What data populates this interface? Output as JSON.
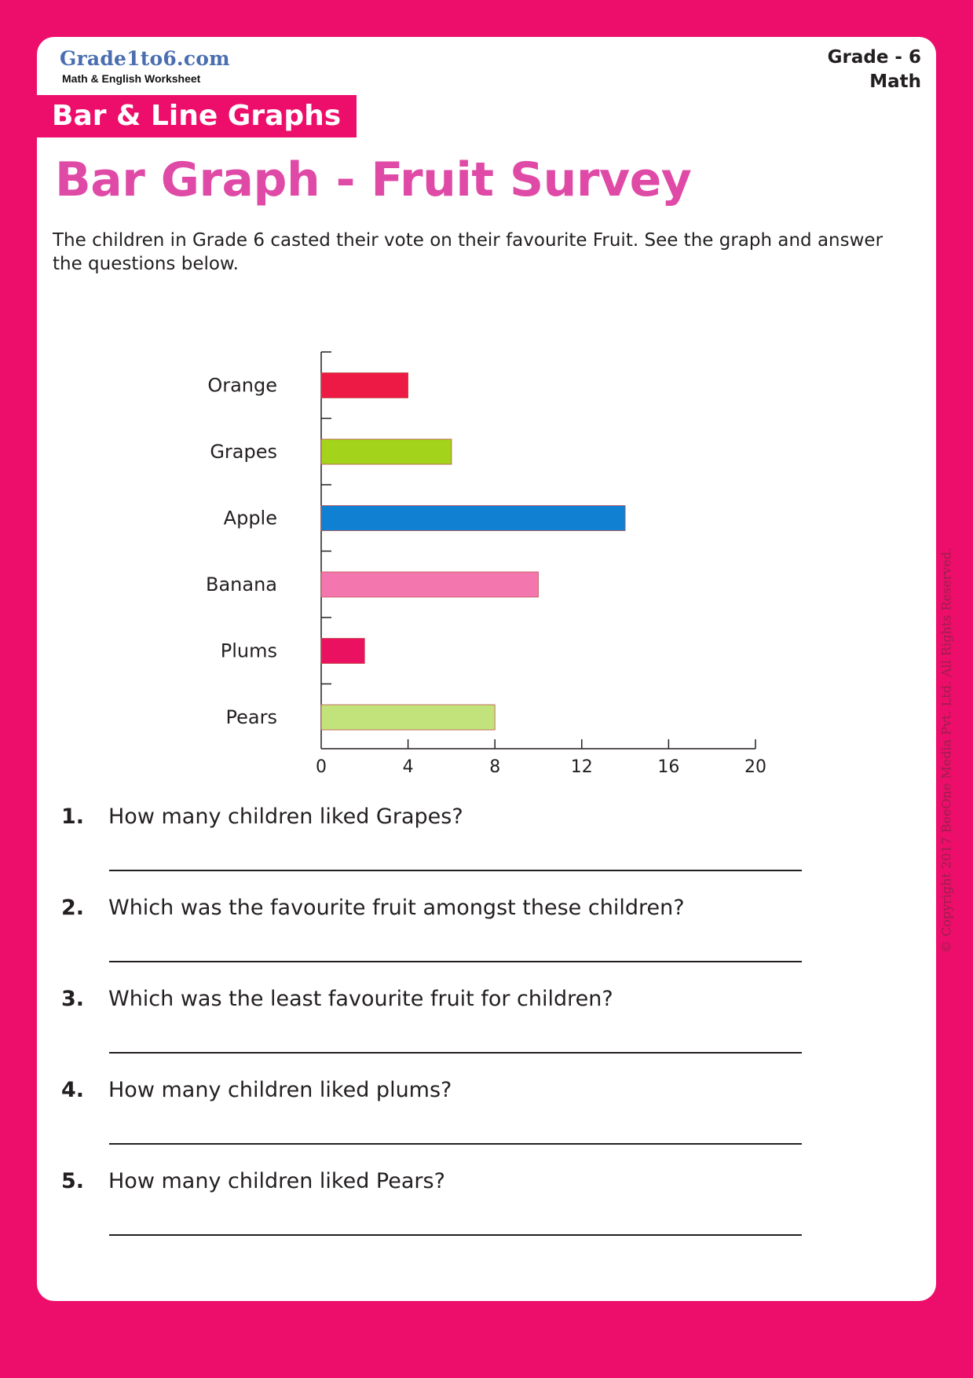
{
  "header": {
    "brand": "Grade1to6.com",
    "brand_subtitle": "Math & English Worksheet",
    "grade": "Grade - 6",
    "subject": "Math",
    "topic": "Bar & Line Graphs"
  },
  "title": "Bar Graph - Fruit Survey",
  "intro": "The children in Grade 6 casted their vote on their favourite Fruit. See the graph and answer the questions below.",
  "chart_data": {
    "type": "bar",
    "orientation": "horizontal",
    "categories": [
      "Orange",
      "Grapes",
      "Apple",
      "Banana",
      "Plums",
      "Pears"
    ],
    "values": [
      4,
      6,
      14,
      10,
      2,
      8
    ],
    "colors": [
      "#ec1a45",
      "#a3d31b",
      "#1080d2",
      "#f476ae",
      "#ea1260",
      "#c2e37b"
    ],
    "xticks": [
      0,
      4,
      8,
      12,
      16,
      20
    ],
    "xlim": [
      0,
      20
    ],
    "title": "",
    "xlabel": "",
    "ylabel": "",
    "grid": false
  },
  "questions": [
    {
      "number": "1.",
      "text": "How many children liked Grapes?"
    },
    {
      "number": "2.",
      "text": "Which was the favourite fruit amongst these children?"
    },
    {
      "number": "3.",
      "text": "Which was the least favourite fruit for children?"
    },
    {
      "number": "4.",
      "text": "How many children liked plums?"
    },
    {
      "number": "5.",
      "text": "How many children liked Pears?"
    }
  ],
  "copyright": "© Copyright 2017 BeeOne Media Pvt. Ltd. All Rights Reserved."
}
